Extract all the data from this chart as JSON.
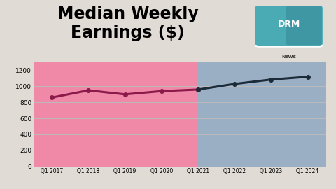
{
  "title": "Median Weekly\nEarnings ($)",
  "title_fontsize": 17,
  "title_fontweight": "bold",
  "categories": [
    "Q1 2017",
    "Q1 2018",
    "Q1 2019",
    "Q1 2020",
    "Q1 2021",
    "Q1 2022",
    "Q1 2023",
    "Q1 2024"
  ],
  "values": [
    860,
    950,
    900,
    940,
    960,
    1030,
    1085,
    1120
  ],
  "trump_color": "#8B1A4A",
  "biden_color": "#1C2B3A",
  "trump_bg": "#F088A8",
  "biden_bg": "#9BAFC4",
  "split_index": 4,
  "ylim": [
    0,
    1300
  ],
  "yticks": [
    0,
    200,
    400,
    600,
    800,
    1000,
    1200
  ],
  "outer_bg": "#E0DBD5",
  "grid_color": "#bbbbbb",
  "line_width": 2.2,
  "marker": "o",
  "marker_size": 4,
  "logo_color1": "#4AABB5",
  "logo_color2": "#3A8A9A",
  "logo_text_color": "white",
  "news_text_color": "#333333"
}
